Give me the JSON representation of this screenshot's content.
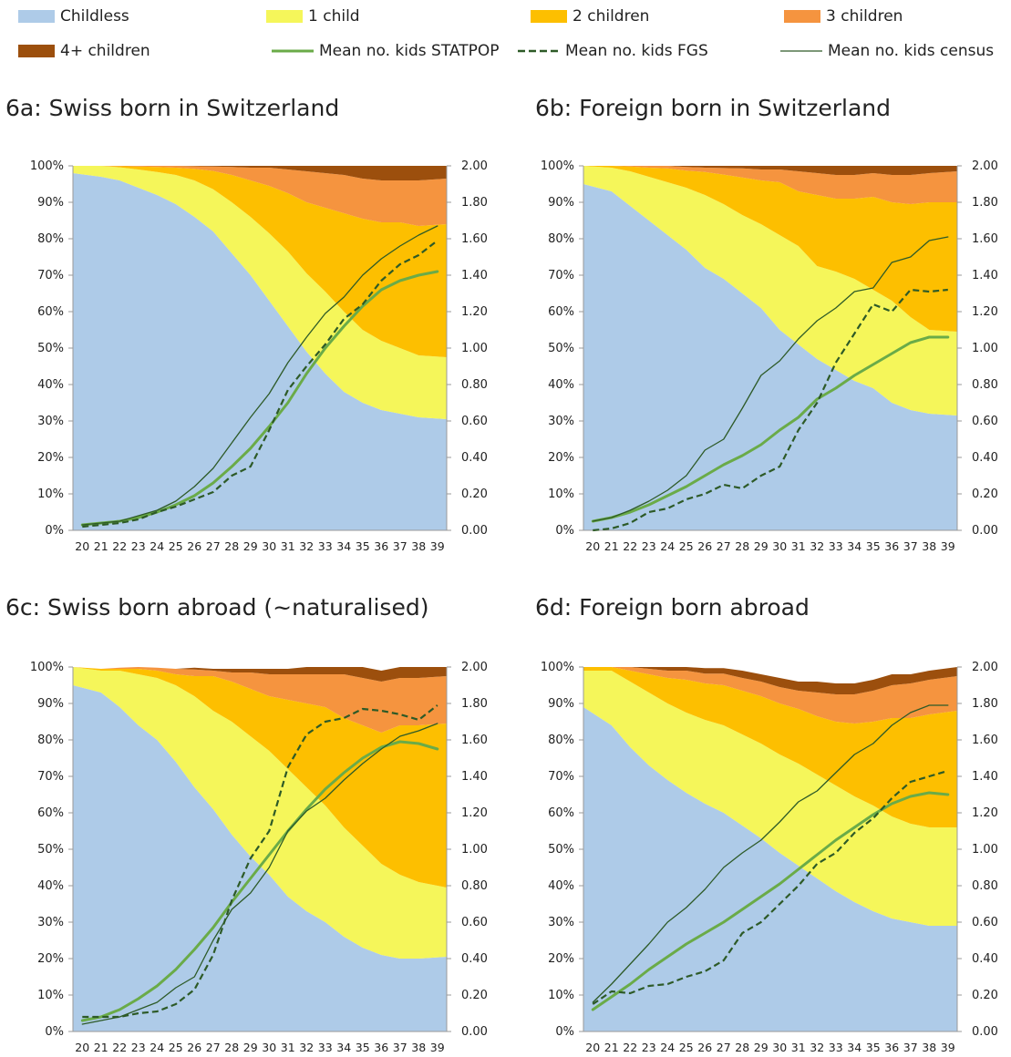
{
  "legend": [
    {
      "label": "Childless",
      "kind": "area",
      "color": "#aecbe8"
    },
    {
      "label": "1 child",
      "kind": "area",
      "color": "#f5f65a"
    },
    {
      "label": "2 children",
      "kind": "area",
      "color": "#fdbf00"
    },
    {
      "label": "3 children",
      "kind": "area",
      "color": "#f5943f"
    },
    {
      "label": "4+ children",
      "kind": "area",
      "color": "#9c4f0d"
    },
    {
      "label": "Mean no. kids STATPOP",
      "kind": "line",
      "color": "#6aab48"
    },
    {
      "label": "Mean no. kids FGS",
      "kind": "dash",
      "color": "#2d5a27"
    },
    {
      "label": "Mean no. kids census",
      "kind": "thin",
      "color": "#2d5a27"
    }
  ],
  "chart_data": [
    {
      "type": "area",
      "title": "6a: Swiss born in Switzerland",
      "x": [
        20,
        21,
        22,
        23,
        24,
        25,
        26,
        27,
        28,
        29,
        30,
        31,
        32,
        33,
        34,
        35,
        36,
        37,
        38,
        39
      ],
      "yticks_left": [
        "0%",
        "10%",
        "20%",
        "30%",
        "40%",
        "50%",
        "60%",
        "70%",
        "80%",
        "90%",
        "100%"
      ],
      "yticks_right": [
        "0.00",
        "0.20",
        "0.40",
        "0.60",
        "0.80",
        "1.00",
        "1.20",
        "1.40",
        "1.60",
        "1.80",
        "2.00"
      ],
      "ylim_left": [
        0,
        100
      ],
      "ylim_right": [
        0,
        2
      ],
      "series": [
        {
          "name": "Childless",
          "values": [
            98,
            97,
            96,
            94,
            92,
            89.5,
            86,
            82,
            76,
            70,
            63,
            56,
            49,
            43,
            38,
            35,
            33,
            32,
            31,
            30.5
          ]
        },
        {
          "name": "1 child",
          "values": [
            2,
            3,
            3.6,
            5,
            6.3,
            8,
            10,
            11.6,
            14,
            16,
            18.5,
            20.5,
            21.5,
            22.5,
            22,
            20,
            19,
            18,
            17,
            17
          ]
        },
        {
          "name": "2 children",
          "values": [
            0,
            0,
            0.3,
            0.8,
            1.4,
            2,
            3.2,
            5,
            7.5,
            10,
            13,
            16,
            19.5,
            23,
            27,
            30.5,
            32.5,
            34.5,
            35.5,
            36.5
          ]
        },
        {
          "name": "3 children",
          "values": [
            0,
            0,
            0.1,
            0.2,
            0.3,
            0.5,
            0.7,
            1.2,
            2.2,
            3.5,
            5,
            6.5,
            8.5,
            9.5,
            10.5,
            11,
            11.5,
            11.5,
            12.5,
            12.5
          ]
        },
        {
          "name": "4+ children",
          "values": [
            0,
            0,
            0,
            0,
            0,
            0,
            0.1,
            0.2,
            0.3,
            0.5,
            0.5,
            1,
            1.5,
            2,
            2.5,
            3.5,
            4,
            4,
            4,
            3.5
          ]
        },
        {
          "name": "Mean no. kids STATPOP",
          "values": [
            0.03,
            0.04,
            0.05,
            0.07,
            0.1,
            0.14,
            0.19,
            0.26,
            0.35,
            0.45,
            0.57,
            0.7,
            0.86,
            1.0,
            1.12,
            1.23,
            1.32,
            1.37,
            1.4,
            1.42
          ]
        },
        {
          "name": "Mean no. kids FGS",
          "values": [
            0.02,
            0.03,
            0.04,
            0.06,
            0.1,
            0.13,
            0.17,
            0.21,
            0.3,
            0.35,
            0.55,
            0.77,
            0.9,
            1.02,
            1.16,
            1.24,
            1.37,
            1.46,
            1.51,
            1.59
          ]
        },
        {
          "name": "Mean no. kids census",
          "values": [
            0.03,
            0.04,
            0.05,
            0.08,
            0.11,
            0.16,
            0.24,
            0.34,
            0.48,
            0.62,
            0.75,
            0.92,
            1.06,
            1.19,
            1.28,
            1.4,
            1.49,
            1.56,
            1.62,
            1.67
          ]
        }
      ]
    },
    {
      "type": "area",
      "title": "6b: Foreign born in Switzerland",
      "x": [
        20,
        21,
        22,
        23,
        24,
        25,
        26,
        27,
        28,
        29,
        30,
        31,
        32,
        33,
        34,
        35,
        36,
        37,
        38,
        39
      ],
      "yticks_left": [
        "0%",
        "10%",
        "20%",
        "30%",
        "40%",
        "50%",
        "60%",
        "70%",
        "80%",
        "90%",
        "100%"
      ],
      "yticks_right": [
        "0.00",
        "0.20",
        "0.40",
        "0.60",
        "0.80",
        "1.00",
        "1.20",
        "1.40",
        "1.60",
        "1.80",
        "2.00"
      ],
      "ylim_left": [
        0,
        100
      ],
      "ylim_right": [
        0,
        2
      ],
      "series": [
        {
          "name": "Childless",
          "values": [
            95,
            93,
            89,
            85,
            81,
            77,
            72,
            69,
            65,
            61,
            55,
            51,
            47,
            44,
            41,
            39,
            35,
            33,
            32,
            31.5
          ]
        },
        {
          "name": "1 child",
          "values": [
            5,
            6.5,
            9.5,
            12,
            14.5,
            17,
            20,
            20.5,
            21.5,
            23,
            26,
            27,
            25.5,
            27,
            28,
            27,
            28,
            25.5,
            23,
            23
          ]
        },
        {
          "name": "2 children",
          "values": [
            0,
            0.5,
            1.3,
            2.5,
            3.8,
            4.7,
            6.3,
            8.1,
            10.3,
            12,
            14.5,
            15,
            19.5,
            20,
            22,
            25.5,
            27,
            31,
            35,
            35.5
          ]
        },
        {
          "name": "3 children",
          "values": [
            0,
            0,
            0.2,
            0.5,
            0.7,
            1,
            1.2,
            1.8,
            2.5,
            3,
            3.5,
            5.5,
            6,
            6.5,
            6.5,
            6.5,
            7.5,
            8,
            8,
            8.5
          ]
        },
        {
          "name": "4+ children",
          "values": [
            0,
            0,
            0,
            0,
            0,
            0.3,
            0.5,
            0.6,
            0.7,
            1,
            1,
            1.5,
            2,
            2.5,
            2.5,
            2,
            2.5,
            2.5,
            2,
            1.5
          ]
        },
        {
          "name": "Mean no. kids STATPOP",
          "values": [
            0.05,
            0.07,
            0.1,
            0.14,
            0.19,
            0.24,
            0.3,
            0.36,
            0.41,
            0.47,
            0.55,
            0.62,
            0.72,
            0.78,
            0.85,
            0.91,
            0.97,
            1.03,
            1.06,
            1.06
          ]
        },
        {
          "name": "Mean no. kids FGS",
          "values": [
            0,
            0.01,
            0.04,
            0.1,
            0.12,
            0.17,
            0.2,
            0.25,
            0.23,
            0.3,
            0.35,
            0.55,
            0.7,
            0.92,
            1.08,
            1.24,
            1.2,
            1.32,
            1.31,
            1.32
          ]
        },
        {
          "name": "Mean no. kids census",
          "values": [
            0.05,
            0.07,
            0.11,
            0.16,
            0.22,
            0.3,
            0.44,
            0.5,
            0.67,
            0.85,
            0.93,
            1.05,
            1.15,
            1.22,
            1.31,
            1.33,
            1.47,
            1.5,
            1.59,
            1.61
          ]
        }
      ]
    },
    {
      "type": "area",
      "title": "6c: Swiss born abroad (~naturalised)",
      "x": [
        20,
        21,
        22,
        23,
        24,
        25,
        26,
        27,
        28,
        29,
        30,
        31,
        32,
        33,
        34,
        35,
        36,
        37,
        38,
        39
      ],
      "yticks_left": [
        "0%",
        "10%",
        "20%",
        "30%",
        "40%",
        "50%",
        "60%",
        "70%",
        "80%",
        "90%",
        "100%"
      ],
      "yticks_right": [
        "0.00",
        "0.20",
        "0.40",
        "0.60",
        "0.80",
        "1.00",
        "1.20",
        "1.40",
        "1.60",
        "1.80",
        "2.00"
      ],
      "ylim_left": [
        0,
        100
      ],
      "ylim_right": [
        0,
        2
      ],
      "series": [
        {
          "name": "Childless",
          "values": [
            95,
            93,
            89,
            84,
            80,
            74,
            67,
            61,
            54,
            48,
            43,
            37,
            33,
            30,
            26,
            23,
            21,
            20,
            20,
            20.5
          ]
        },
        {
          "name": "1 child",
          "values": [
            5,
            6,
            10,
            14,
            17,
            21,
            25,
            27,
            31,
            33,
            34,
            35,
            34,
            32,
            30,
            28,
            25,
            23,
            21,
            19
          ]
        },
        {
          "name": "2 children",
          "values": [
            0,
            0.5,
            0.5,
            1.5,
            2,
            3,
            5.5,
            9.5,
            11,
            13,
            15,
            19,
            23,
            27,
            30,
            33,
            36,
            41,
            43,
            45
          ]
        },
        {
          "name": "3 children",
          "values": [
            0,
            0,
            0.3,
            0.5,
            0.8,
            1.5,
            1.8,
            1.5,
            2.5,
            4.5,
            6,
            7,
            8,
            9,
            12,
            13,
            14,
            13,
            13,
            13
          ]
        },
        {
          "name": "4+ children",
          "values": [
            0,
            0,
            0,
            0,
            0,
            0,
            0.5,
            0.5,
            1,
            1,
            1.5,
            1.5,
            2,
            2,
            2.5,
            3,
            3,
            3,
            3,
            2.5
          ]
        },
        {
          "name": "Mean no. kids STATPOP",
          "values": [
            0.06,
            0.08,
            0.12,
            0.18,
            0.25,
            0.34,
            0.45,
            0.57,
            0.71,
            0.84,
            0.97,
            1.1,
            1.22,
            1.33,
            1.42,
            1.5,
            1.56,
            1.59,
            1.58,
            1.55
          ]
        },
        {
          "name": "Mean no. kids FGS",
          "values": [
            0.08,
            0.08,
            0.08,
            0.1,
            0.11,
            0.15,
            0.23,
            0.42,
            0.72,
            0.95,
            1.1,
            1.45,
            1.63,
            1.7,
            1.72,
            1.77,
            1.76,
            1.74,
            1.71,
            1.79
          ]
        },
        {
          "name": "Mean no. kids census",
          "values": [
            0.04,
            0.06,
            0.08,
            0.12,
            0.16,
            0.24,
            0.3,
            0.5,
            0.67,
            0.76,
            0.9,
            1.1,
            1.21,
            1.28,
            1.38,
            1.47,
            1.55,
            1.62,
            1.65,
            1.69
          ]
        }
      ]
    },
    {
      "type": "area",
      "title": "6d: Foreign born abroad",
      "x": [
        20,
        21,
        22,
        23,
        24,
        25,
        26,
        27,
        28,
        29,
        30,
        31,
        32,
        33,
        34,
        35,
        36,
        37,
        38,
        39
      ],
      "yticks_left": [
        "0%",
        "10%",
        "20%",
        "30%",
        "40%",
        "50%",
        "60%",
        "70%",
        "80%",
        "90%",
        "100%"
      ],
      "yticks_right": [
        "0.00",
        "0.20",
        "0.40",
        "0.60",
        "0.80",
        "1.00",
        "1.20",
        "1.40",
        "1.60",
        "1.80",
        "2.00"
      ],
      "ylim_left": [
        0,
        100
      ],
      "ylim_right": [
        0,
        2
      ],
      "series": [
        {
          "name": "Childless",
          "values": [
            89,
            84,
            78,
            73,
            69,
            65.5,
            62.5,
            60,
            56.5,
            53,
            49,
            45.5,
            42,
            38.5,
            35.5,
            33,
            31,
            30,
            29,
            29
          ]
        },
        {
          "name": "1 child",
          "values": [
            10,
            15,
            18,
            20,
            21,
            22,
            23,
            24,
            25,
            26,
            27,
            28,
            28.5,
            29,
            29,
            29,
            28,
            27,
            27,
            27
          ]
        },
        {
          "name": "2 children",
          "values": [
            1,
            1,
            3,
            5,
            7,
            9,
            10,
            11,
            12,
            13,
            14,
            15,
            16,
            17.5,
            20,
            23,
            27,
            29,
            31,
            32
          ]
        },
        {
          "name": "3 children",
          "values": [
            0,
            0,
            1,
            1.5,
            2,
            2.5,
            2.7,
            3.2,
            3.5,
            4,
            4.5,
            5,
            6.5,
            7.5,
            8,
            8.5,
            9,
            9.5,
            9.5,
            9.5
          ]
        },
        {
          "name": "4+ children",
          "values": [
            0,
            0,
            0,
            0.5,
            1,
            1,
            1.5,
            1.5,
            2,
            2,
            2.5,
            2.5,
            3,
            3,
            3,
            3,
            3,
            2.5,
            2.5,
            2.5
          ]
        },
        {
          "name": "Mean no. kids STATPOP",
          "values": [
            0.12,
            0.19,
            0.26,
            0.34,
            0.41,
            0.48,
            0.54,
            0.6,
            0.67,
            0.74,
            0.81,
            0.89,
            0.97,
            1.05,
            1.12,
            1.19,
            1.25,
            1.29,
            1.31,
            1.3
          ]
        },
        {
          "name": "Mean no. kids FGS",
          "values": [
            0.15,
            0.22,
            0.21,
            0.25,
            0.26,
            0.3,
            0.33,
            0.39,
            0.54,
            0.6,
            0.7,
            0.8,
            0.92,
            0.98,
            1.09,
            1.17,
            1.28,
            1.37,
            1.4,
            1.43
          ]
        },
        {
          "name": "Mean no. kids census",
          "values": [
            0.16,
            0.26,
            0.37,
            0.48,
            0.6,
            0.68,
            0.78,
            0.9,
            0.98,
            1.05,
            1.15,
            1.26,
            1.32,
            1.42,
            1.52,
            1.58,
            1.68,
            1.75,
            1.79,
            1.79
          ]
        }
      ]
    }
  ]
}
